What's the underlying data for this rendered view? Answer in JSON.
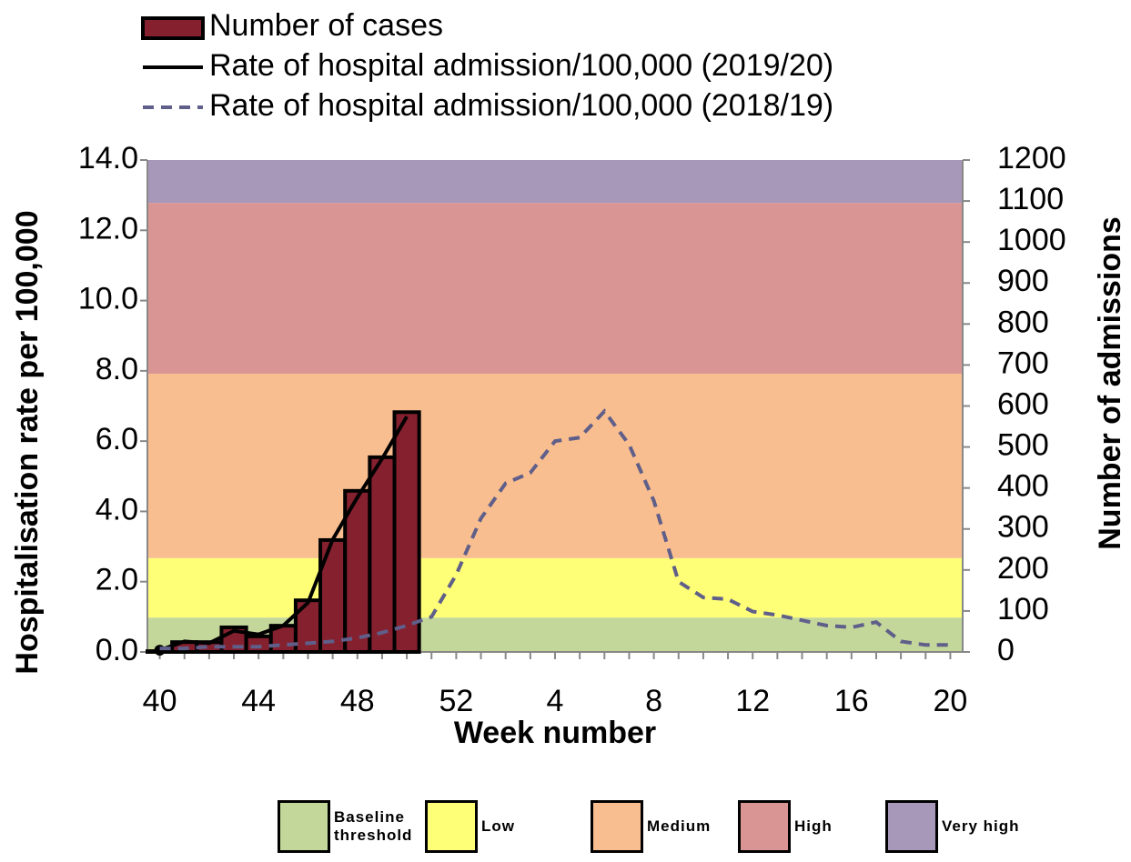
{
  "chart_data": {
    "type": "bar-line",
    "x_title": "Week number",
    "y_title": "Hospitalisation rate per 100,000",
    "y2_title": "Number of admissions",
    "categories": [
      40,
      null,
      null,
      null,
      44,
      null,
      null,
      null,
      48,
      null,
      null,
      null,
      52,
      null,
      null,
      null,
      4,
      null,
      null,
      null,
      8,
      null,
      null,
      null,
      12,
      null,
      null,
      null,
      16,
      null,
      null,
      null,
      20
    ],
    "ylim": [
      0,
      14
    ],
    "yticks": [
      {
        "value": 0,
        "label": "0.0"
      },
      {
        "value": 2,
        "label": "2.0"
      },
      {
        "value": 4,
        "label": "4.0"
      },
      {
        "value": 6,
        "label": "6.0"
      },
      {
        "value": 8,
        "label": "8.0"
      },
      {
        "value": 10,
        "label": "10.0"
      },
      {
        "value": 12,
        "label": "12.0"
      },
      {
        "value": 14,
        "label": "14.0"
      }
    ],
    "y2lim": [
      0,
      1200
    ],
    "y2ticks": [
      0,
      100,
      200,
      300,
      400,
      500,
      600,
      700,
      800,
      900,
      1000,
      1100,
      1200
    ],
    "bands": [
      {
        "name": "Baseline threshold",
        "color": "#c4d79b",
        "range": [
          0,
          0.98
        ]
      },
      {
        "name": "Low",
        "color": "#ffff77",
        "range": [
          0.98,
          2.67
        ]
      },
      {
        "name": "Medium",
        "color": "#f9be8f",
        "range": [
          2.67,
          7.92
        ]
      },
      {
        "name": "High",
        "color": "#d99594",
        "range": [
          7.92,
          12.78
        ]
      },
      {
        "name": "Very high",
        "color": "#a797b9",
        "range": [
          12.78,
          14
        ]
      }
    ],
    "series": [
      {
        "name": "Number of cases",
        "kind": "bar",
        "axis": "y2",
        "color": "#85202f",
        "values": [
          2,
          24,
          24,
          60,
          38,
          64,
          126,
          273,
          393,
          475,
          585,
          null,
          null,
          null,
          null,
          null,
          null,
          null,
          null,
          null,
          null,
          null,
          null,
          null,
          null,
          null,
          null,
          null,
          null,
          null,
          null,
          null,
          null
        ]
      },
      {
        "name": "Rate of hospital admission/100,000 (2019/20)",
        "kind": "line",
        "axis": "y",
        "color": "#000000",
        "values": [
          0.05,
          0.3,
          0.25,
          0.6,
          0.5,
          0.75,
          1.4,
          3.2,
          4.4,
          5.5,
          6.7,
          null,
          null,
          null,
          null,
          null,
          null,
          null,
          null,
          null,
          null,
          null,
          null,
          null,
          null,
          null,
          null,
          null,
          null,
          null,
          null,
          null,
          null
        ]
      },
      {
        "name": "Rate of hospital admission/100,000 (2018/19)",
        "kind": "dashed",
        "axis": "y",
        "color": "#5f5f8a",
        "values": [
          0.1,
          0.1,
          0.15,
          0.15,
          0.15,
          0.2,
          0.25,
          0.3,
          0.4,
          0.55,
          0.75,
          1.0,
          2.2,
          3.8,
          4.8,
          5.1,
          6.0,
          6.1,
          6.85,
          5.9,
          4.3,
          2.0,
          1.55,
          1.5,
          1.15,
          1.05,
          0.9,
          0.75,
          0.7,
          0.85,
          0.3,
          0.2,
          0.2
        ]
      }
    ]
  }
}
